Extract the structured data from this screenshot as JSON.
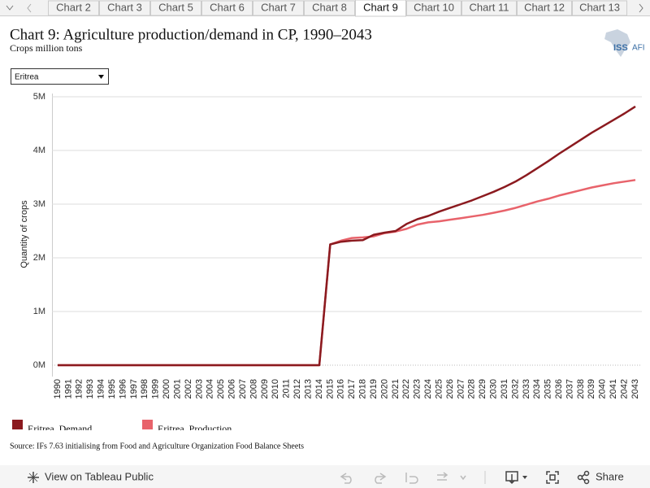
{
  "tabs": [
    "Chart 2",
    "Chart 3",
    "Chart 5",
    "Chart 6",
    "Chart 7",
    "Chart 8",
    "Chart 9",
    "Chart 10",
    "Chart 11",
    "Chart 12",
    "Chart 13"
  ],
  "logo": "ISS",
  "logo_tail": "AFI",
  "chart_data": {
    "type": "line",
    "title": "Chart 9: Agriculture production/demand in CP, 1990–2043",
    "subtitle": "Crops million tons",
    "filter": "Eritrea",
    "y_label": "Quantity of crops",
    "categories": [
      "1990",
      "1991",
      "1992",
      "1993",
      "1994",
      "1995",
      "1996",
      "1997",
      "1998",
      "1999",
      "2000",
      "2001",
      "2002",
      "2003",
      "2004",
      "2005",
      "2006",
      "2007",
      "2008",
      "2009",
      "2010",
      "2011",
      "2012",
      "2013",
      "2014",
      "2015",
      "2016",
      "2017",
      "2018",
      "2019",
      "2020",
      "2021",
      "2022",
      "2023",
      "2024",
      "2025",
      "2026",
      "2027",
      "2028",
      "2029",
      "2030",
      "2031",
      "2032",
      "2033",
      "2034",
      "2035",
      "2036",
      "2037",
      "2038",
      "2039",
      "2040",
      "2041",
      "2042",
      "2043"
    ],
    "series": [
      {
        "name": "Eritrea  Demand",
        "color": "#8b1a1f",
        "values": [
          0,
          0,
          0,
          0,
          0,
          0,
          0,
          0,
          0,
          0,
          0,
          0,
          0,
          0,
          0,
          0,
          0,
          0,
          0,
          0,
          0,
          0,
          0,
          0,
          0,
          2250000,
          2300000,
          2320000,
          2330000,
          2430000,
          2470000,
          2500000,
          2630000,
          2720000,
          2780000,
          2860000,
          2930000,
          3000000,
          3070000,
          3150000,
          3230000,
          3320000,
          3420000,
          3540000,
          3670000,
          3800000,
          3940000,
          4070000,
          4200000,
          4330000,
          4450000,
          4570000,
          4690000,
          4820000
        ]
      },
      {
        "name": "Eritrea  Production",
        "color": "#e8636b",
        "values": [
          0,
          0,
          0,
          0,
          0,
          0,
          0,
          0,
          0,
          0,
          0,
          0,
          0,
          0,
          0,
          0,
          0,
          0,
          0,
          0,
          0,
          0,
          0,
          0,
          0,
          2250000,
          2320000,
          2370000,
          2380000,
          2400000,
          2460000,
          2490000,
          2540000,
          2620000,
          2660000,
          2680000,
          2710000,
          2740000,
          2770000,
          2800000,
          2840000,
          2880000,
          2930000,
          2990000,
          3050000,
          3100000,
          3160000,
          3210000,
          3260000,
          3310000,
          3350000,
          3390000,
          3420000,
          3450000
        ]
      }
    ],
    "ylim": [
      0,
      5000000
    ],
    "yticks": [
      {
        "value": 0,
        "label": "0M"
      },
      {
        "value": 1000000,
        "label": "1M"
      },
      {
        "value": 2000000,
        "label": "2M"
      },
      {
        "value": 3000000,
        "label": "3M"
      },
      {
        "value": 4000000,
        "label": "4M"
      },
      {
        "value": 5000000,
        "label": "5M"
      }
    ],
    "grid": true
  },
  "source": "Source: IFs 7.63 initialising from Food and Agriculture Organization Food Balance Sheets",
  "toolbar": {
    "view": "View on Tableau Public",
    "share": "Share"
  }
}
